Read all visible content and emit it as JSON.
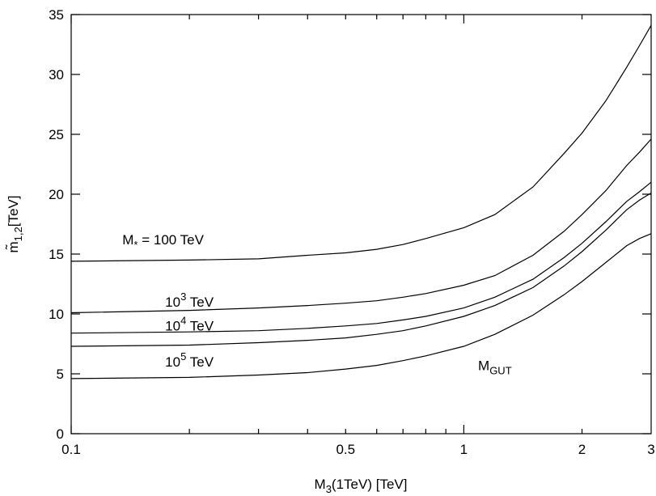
{
  "chart_data": {
    "type": "line",
    "title": "",
    "xlabel": {
      "base": "M",
      "sub": "3",
      "rest": "(1TeV) [TeV]"
    },
    "ylabel": {
      "base": "m̃",
      "sub": "1,2",
      "rest": "[TeV]"
    },
    "xscale": "log",
    "xlim": [
      0.1,
      3
    ],
    "ylim": [
      0,
      35
    ],
    "grid": false,
    "xticks": [
      {
        "value": 0.1,
        "label": "0.1"
      },
      {
        "value": 0.5,
        "label": "0.5"
      },
      {
        "value": 1,
        "label": "1"
      },
      {
        "value": 2,
        "label": "2"
      },
      {
        "value": 3,
        "label": "3"
      }
    ],
    "yticks": [
      {
        "value": 0,
        "label": "0"
      },
      {
        "value": 5,
        "label": "5"
      },
      {
        "value": 10,
        "label": "10"
      },
      {
        "value": 15,
        "label": "15"
      },
      {
        "value": 20,
        "label": "20"
      },
      {
        "value": 25,
        "label": "25"
      },
      {
        "value": 30,
        "label": "30"
      },
      {
        "value": 35,
        "label": "35"
      }
    ],
    "series": [
      {
        "label": {
          "base": "M",
          "sub": "*",
          "rest": " = 100 TeV"
        },
        "points": [
          [
            0.1,
            14.4
          ],
          [
            0.2,
            14.5
          ],
          [
            0.3,
            14.6
          ],
          [
            0.4,
            14.9
          ],
          [
            0.5,
            15.1
          ],
          [
            0.6,
            15.4
          ],
          [
            0.7,
            15.8
          ],
          [
            0.8,
            16.3
          ],
          [
            1.0,
            17.2
          ],
          [
            1.2,
            18.3
          ],
          [
            1.5,
            20.6
          ],
          [
            1.8,
            23.4
          ],
          [
            2.0,
            25.1
          ],
          [
            2.3,
            27.8
          ],
          [
            2.6,
            30.6
          ],
          [
            2.8,
            32.4
          ],
          [
            3.0,
            34.1
          ]
        ]
      },
      {
        "label": {
          "base": "10",
          "sup": "3",
          "rest": " TeV"
        },
        "points": [
          [
            0.1,
            10.1
          ],
          [
            0.2,
            10.3
          ],
          [
            0.3,
            10.5
          ],
          [
            0.4,
            10.7
          ],
          [
            0.5,
            10.9
          ],
          [
            0.6,
            11.1
          ],
          [
            0.7,
            11.4
          ],
          [
            0.8,
            11.7
          ],
          [
            1.0,
            12.4
          ],
          [
            1.2,
            13.2
          ],
          [
            1.5,
            14.9
          ],
          [
            1.8,
            16.9
          ],
          [
            2.0,
            18.3
          ],
          [
            2.3,
            20.3
          ],
          [
            2.6,
            22.4
          ],
          [
            2.8,
            23.5
          ],
          [
            3.0,
            24.6
          ]
        ]
      },
      {
        "label": {
          "base": "10",
          "sup": "4",
          "rest": " TeV"
        },
        "points": [
          [
            0.1,
            8.4
          ],
          [
            0.2,
            8.5
          ],
          [
            0.3,
            8.6
          ],
          [
            0.4,
            8.8
          ],
          [
            0.5,
            9.0
          ],
          [
            0.6,
            9.2
          ],
          [
            0.7,
            9.5
          ],
          [
            0.8,
            9.8
          ],
          [
            1.0,
            10.5
          ],
          [
            1.2,
            11.4
          ],
          [
            1.5,
            12.9
          ],
          [
            1.8,
            14.7
          ],
          [
            2.0,
            15.9
          ],
          [
            2.3,
            17.7
          ],
          [
            2.6,
            19.4
          ],
          [
            2.8,
            20.2
          ],
          [
            3.0,
            21.0
          ]
        ]
      },
      {
        "label": null,
        "points": [
          [
            0.1,
            7.3
          ],
          [
            0.2,
            7.4
          ],
          [
            0.3,
            7.6
          ],
          [
            0.4,
            7.8
          ],
          [
            0.5,
            8.0
          ],
          [
            0.6,
            8.3
          ],
          [
            0.7,
            8.6
          ],
          [
            0.8,
            9.0
          ],
          [
            1.0,
            9.8
          ],
          [
            1.2,
            10.7
          ],
          [
            1.5,
            12.2
          ],
          [
            1.8,
            14.0
          ],
          [
            2.0,
            15.2
          ],
          [
            2.3,
            17.0
          ],
          [
            2.6,
            18.7
          ],
          [
            2.8,
            19.5
          ],
          [
            3.0,
            20.1
          ]
        ]
      },
      {
        "label": {
          "base": "10",
          "sup": "5",
          "rest": " TeV"
        },
        "points": [
          [
            0.1,
            4.6
          ],
          [
            0.2,
            4.7
          ],
          [
            0.3,
            4.9
          ],
          [
            0.4,
            5.1
          ],
          [
            0.5,
            5.4
          ],
          [
            0.6,
            5.7
          ],
          [
            0.7,
            6.1
          ],
          [
            0.8,
            6.5
          ],
          [
            1.0,
            7.3
          ],
          [
            1.2,
            8.3
          ],
          [
            1.5,
            9.9
          ],
          [
            1.8,
            11.6
          ],
          [
            2.0,
            12.7
          ],
          [
            2.3,
            14.3
          ],
          [
            2.6,
            15.7
          ],
          [
            2.8,
            16.3
          ],
          [
            3.0,
            16.7
          ]
        ]
      }
    ],
    "annotations": [
      {
        "text": {
          "base": "M",
          "sub": "GUT",
          "rest": ""
        },
        "x": 1.2,
        "y": 5.3
      }
    ]
  }
}
